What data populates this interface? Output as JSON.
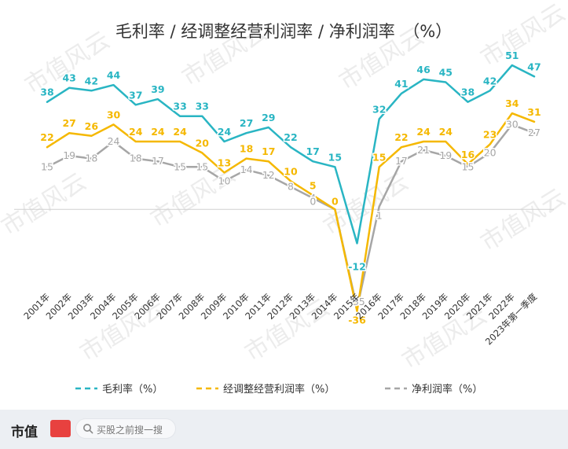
{
  "chart_data": {
    "type": "line",
    "title": "毛利率 / 经调整经营利润率 / 净利润率　（%）",
    "categories": [
      "2001年",
      "2002年",
      "2003年",
      "2004年",
      "2005年",
      "2006年",
      "2007年",
      "2008年",
      "2009年",
      "2010年",
      "2011年",
      "2012年",
      "2013年",
      "2014年",
      "2015年",
      "2016年",
      "2017年",
      "2018年",
      "2019年",
      "2020年",
      "2021年",
      "2022年",
      "2023年第一季度"
    ],
    "series": [
      {
        "name": "毛利率（%）",
        "color": "#29b5c3",
        "values": [
          38,
          43,
          42,
          44,
          37,
          39,
          33,
          33,
          24,
          27,
          29,
          22,
          17,
          15,
          -12,
          32,
          41,
          46,
          45,
          38,
          42,
          51,
          47
        ]
      },
      {
        "name": "经调整经营利润率（%）",
        "color": "#f5b800",
        "values": [
          22,
          27,
          26,
          30,
          24,
          24,
          24,
          20,
          13,
          18,
          17,
          10,
          5,
          0,
          -36,
          15,
          22,
          24,
          24,
          16,
          23,
          34,
          31
        ]
      },
      {
        "name": "净利润率（%）",
        "color": "#a6a6a6",
        "values": [
          15,
          19,
          18,
          24,
          18,
          17,
          15,
          15,
          10,
          14,
          12,
          8,
          4,
          0,
          -35,
          1,
          17,
          21,
          19,
          15,
          20,
          30,
          27
        ]
      }
    ],
    "ylim": [
      -40,
      56
    ],
    "grid": false,
    "legend": "bottom",
    "watermark": "市值风云"
  },
  "footer": {
    "brand": "市值",
    "search_placeholder": "买股之前搜一搜"
  }
}
